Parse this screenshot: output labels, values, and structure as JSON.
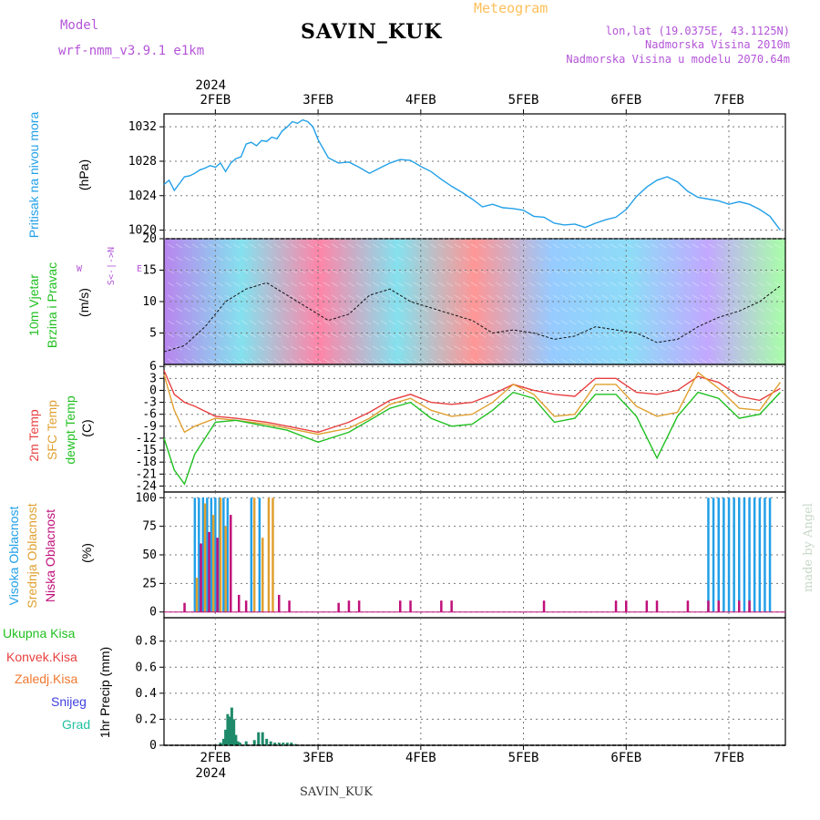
{
  "header": {
    "meteogram": "Meteogram",
    "model_label": "Model",
    "model_name": "wrf-nmm_v3.9.1 e1km",
    "station": "SAVIN_KUK",
    "lonlat": "lon,lat (19.0375E, 43.1125N)",
    "elevation": "Nadmorska Visina 2010m",
    "model_elevation": "Nadmorska Visina u modelu 2070.64m"
  },
  "footer": {
    "station": "SAVIN_KUK",
    "made_by": "made by Angel"
  },
  "colors": {
    "pressure": "#22a0e8",
    "temp2m": "#e84040",
    "sfc": "#e0a030",
    "dew": "#20c020",
    "high_cloud": "#22a0e8",
    "mid_cloud": "#e0a030",
    "low_cloud": "#c0107a",
    "precip": "#1f8a6a"
  },
  "chart_data": [
    {
      "type": "line",
      "panel": "pressure",
      "title": "",
      "ylabel_lines": [
        "Pritisak na nivou mora",
        "(hPa)"
      ],
      "ylim": [
        1019,
        1033.5
      ],
      "yticks": [
        1020,
        1024,
        1028,
        1032
      ],
      "x_unit": "days since start (0 = 1FEB 12:00)",
      "top_axis": {
        "year": "2024",
        "ticks": [
          "2FEB",
          "3FEB",
          "4FEB",
          "5FEB",
          "6FEB",
          "7FEB"
        ]
      },
      "series": [
        {
          "name": "Pritisak na nivou mora",
          "x": [
            0,
            0.05,
            0.1,
            0.15,
            0.2,
            0.25,
            0.3,
            0.35,
            0.4,
            0.45,
            0.5,
            0.55,
            0.6,
            0.65,
            0.7,
            0.75,
            0.8,
            0.85,
            0.9,
            0.95,
            1.0,
            1.05,
            1.1,
            1.15,
            1.2,
            1.25,
            1.3,
            1.35,
            1.4,
            1.45,
            1.5,
            1.6,
            1.7,
            1.8,
            1.9,
            2.0,
            2.1,
            2.2,
            2.3,
            2.4,
            2.5,
            2.6,
            2.7,
            2.8,
            2.9,
            3.0,
            3.1,
            3.2,
            3.3,
            3.4,
            3.5,
            3.6,
            3.7,
            3.8,
            3.9,
            4.0,
            4.1,
            4.2,
            4.3,
            4.4,
            4.5,
            4.6,
            4.7,
            4.8,
            4.9,
            5.0,
            5.1,
            5.2,
            5.3,
            5.4,
            5.5,
            5.6,
            5.7,
            5.8,
            5.9,
            6.0
          ],
          "values": [
            1025.3,
            1025.8,
            1024.6,
            1025.4,
            1026.2,
            1026.3,
            1026.6,
            1027.0,
            1027.2,
            1027.5,
            1027.3,
            1027.8,
            1026.8,
            1027.8,
            1028.3,
            1028.5,
            1030.0,
            1030.2,
            1029.8,
            1030.4,
            1030.3,
            1030.8,
            1030.6,
            1031.5,
            1032.0,
            1032.6,
            1032.4,
            1032.8,
            1032.6,
            1032.0,
            1030.5,
            1028.4,
            1027.8,
            1027.9,
            1027.3,
            1026.6,
            1027.2,
            1027.8,
            1028.2,
            1028.1,
            1027.4,
            1026.8,
            1025.9,
            1025.1,
            1024.4,
            1023.6,
            1022.7,
            1023.0,
            1022.6,
            1022.5,
            1022.3,
            1021.6,
            1021.5,
            1020.8,
            1020.6,
            1020.7,
            1020.3,
            1020.8,
            1021.2,
            1021.5,
            1022.4,
            1023.9,
            1025.0,
            1025.8,
            1026.2,
            1025.6,
            1024.5,
            1023.8,
            1023.6,
            1023.4,
            1023.0,
            1023.3,
            1023.0,
            1022.4,
            1021.6,
            1020.0
          ]
        }
      ]
    },
    {
      "type": "line",
      "panel": "wind",
      "ylabel_lines": [
        "10m Vjetar",
        "Brzina i Pravac",
        "(m/s)"
      ],
      "direction_key": [
        "W",
        "E",
        "N",
        "S"
      ],
      "ylim": [
        0,
        20
      ],
      "yticks": [
        5,
        10,
        15,
        20
      ],
      "series": [
        {
          "name": "Brzina",
          "x": [
            0,
            0.2,
            0.4,
            0.6,
            0.8,
            1.0,
            1.2,
            1.4,
            1.6,
            1.8,
            2.0,
            2.2,
            2.4,
            2.6,
            2.8,
            3.0,
            3.2,
            3.4,
            3.6,
            3.8,
            4.0,
            4.2,
            4.4,
            4.6,
            4.8,
            5.0,
            5.2,
            5.4,
            5.6,
            5.8,
            6.0
          ],
          "values": [
            2.0,
            3.0,
            6.0,
            10.0,
            12.0,
            13.0,
            11.0,
            9.0,
            7.0,
            8.0,
            11.0,
            12.0,
            10.0,
            9.0,
            8.0,
            7.0,
            5.0,
            5.5,
            5.0,
            4.0,
            4.5,
            6.0,
            5.5,
            5.0,
            3.5,
            4.0,
            6.0,
            7.5,
            8.5,
            10.0,
            12.5
          ]
        }
      ],
      "arrow_colors_by_day": [
        "#8020e0",
        "#20c8e0",
        "#ff2060",
        "#20c8e0",
        "#ff4040",
        "#40a0ff",
        "#30c0f0",
        "#9060ff",
        "#60ff60"
      ]
    },
    {
      "type": "line",
      "panel": "temperature",
      "ylabel_lines": [
        "2m Temp",
        "SFC Temp",
        "dewpt Temp",
        "(C)"
      ],
      "ylim": [
        -25.5,
        6.5
      ],
      "yticks": [
        6,
        3,
        0,
        -3,
        -6,
        -9,
        -12,
        -15,
        -18,
        -21,
        -24
      ],
      "series": [
        {
          "name": "2m Temp",
          "x": [
            0,
            0.1,
            0.2,
            0.3,
            0.5,
            0.7,
            1.0,
            1.2,
            1.5,
            1.8,
            2.0,
            2.2,
            2.4,
            2.6,
            2.8,
            3.0,
            3.2,
            3.4,
            3.6,
            3.8,
            4.0,
            4.2,
            4.4,
            4.6,
            4.8,
            5.0,
            5.2,
            5.4,
            5.6,
            5.8,
            6.0
          ],
          "values": [
            5.0,
            -1.0,
            -3.0,
            -4.0,
            -6.5,
            -7.0,
            -8.0,
            -9.0,
            -10.5,
            -8.0,
            -5.5,
            -2.5,
            -1.0,
            -3.0,
            -3.5,
            -3.0,
            -1.0,
            1.5,
            0.0,
            -1.0,
            -1.5,
            3.0,
            3.0,
            -0.5,
            -1.0,
            0.0,
            3.5,
            2.0,
            -1.5,
            -2.5,
            0.5
          ]
        },
        {
          "name": "SFC Temp",
          "x": [
            0,
            0.1,
            0.2,
            0.3,
            0.5,
            0.7,
            1.0,
            1.2,
            1.5,
            1.8,
            2.0,
            2.2,
            2.4,
            2.6,
            2.8,
            3.0,
            3.2,
            3.4,
            3.6,
            3.8,
            4.0,
            4.2,
            4.4,
            4.6,
            4.8,
            5.0,
            5.2,
            5.4,
            5.6,
            5.8,
            6.0
          ],
          "values": [
            4.0,
            -5.0,
            -10.5,
            -9.0,
            -7.0,
            -7.5,
            -8.5,
            -9.5,
            -11.0,
            -9.5,
            -7.0,
            -3.5,
            -2.0,
            -5.0,
            -6.5,
            -6.0,
            -3.0,
            1.5,
            -1.0,
            -6.5,
            -6.0,
            1.5,
            1.5,
            -4.0,
            -6.5,
            -5.5,
            4.5,
            0.5,
            -4.5,
            -5.0,
            2.0
          ]
        },
        {
          "name": "dewpt Temp",
          "x": [
            0,
            0.1,
            0.2,
            0.3,
            0.5,
            0.7,
            1.0,
            1.2,
            1.5,
            1.8,
            2.0,
            2.2,
            2.4,
            2.6,
            2.8,
            3.0,
            3.2,
            3.4,
            3.6,
            3.8,
            4.0,
            4.2,
            4.4,
            4.6,
            4.8,
            5.0,
            5.2,
            5.4,
            5.6,
            5.8,
            6.0
          ],
          "values": [
            -12.0,
            -20.0,
            -23.5,
            -16.0,
            -8.0,
            -7.5,
            -9.0,
            -10.0,
            -13.0,
            -10.5,
            -7.5,
            -4.5,
            -3.0,
            -7.0,
            -9.0,
            -8.5,
            -5.0,
            -0.5,
            -2.0,
            -8.0,
            -7.0,
            -1.0,
            -1.0,
            -6.5,
            -17.0,
            -6.5,
            -0.5,
            -2.0,
            -7.0,
            -6.0,
            -0.5
          ]
        }
      ]
    },
    {
      "type": "bar",
      "panel": "clouds",
      "ylabel_lines": [
        "Visoka Oblacnost",
        "Srednja Oblacnost",
        "Niska Oblacnost",
        "(%)"
      ],
      "ylim": [
        -5,
        105
      ],
      "yticks": [
        0,
        25,
        50,
        75,
        100
      ],
      "series": [
        {
          "name": "Visoka Oblacnost",
          "x": [
            0.3,
            0.34,
            0.38,
            0.42,
            0.46,
            0.5,
            0.54,
            0.58,
            0.62,
            0.85,
            0.93,
            5.3,
            5.35,
            5.4,
            5.45,
            5.5,
            5.55,
            5.6,
            5.65,
            5.7,
            5.75,
            5.8,
            5.85,
            5.9
          ],
          "values": [
            100,
            100,
            100,
            100,
            100,
            100,
            100,
            100,
            100,
            100,
            100,
            100,
            100,
            100,
            100,
            100,
            100,
            100,
            100,
            100,
            100,
            100,
            100,
            100
          ]
        },
        {
          "name": "Srednja Oblacnost",
          "x": [
            0.32,
            0.4,
            0.48,
            0.55,
            0.6,
            0.88,
            0.96,
            1.02,
            1.06
          ],
          "values": [
            30,
            95,
            85,
            100,
            75,
            100,
            65,
            100,
            100
          ]
        },
        {
          "name": "Niska Oblacnost",
          "x": [
            0.2,
            0.36,
            0.44,
            0.52,
            0.65,
            0.73,
            0.8,
            1.12,
            1.22,
            1.7,
            1.8,
            1.9,
            2.3,
            2.4,
            2.7,
            2.8,
            3.7,
            4.4,
            4.5,
            4.7,
            4.8,
            5.1,
            5.3,
            5.4,
            5.6,
            5.7
          ],
          "values": [
            8,
            60,
            70,
            65,
            85,
            15,
            10,
            15,
            10,
            8,
            10,
            10,
            10,
            10,
            10,
            10,
            10,
            10,
            10,
            10,
            10,
            10,
            10,
            10,
            10,
            10
          ]
        }
      ]
    },
    {
      "type": "bar",
      "panel": "precipitation",
      "ylabel_lines": [
        "Ukupna Kisa",
        "Konvek.Kisa",
        "Zaledj.Kisa",
        "Snijeg",
        "Grad",
        "1hr Precip (mm)"
      ],
      "ylim": [
        0,
        0.98
      ],
      "yticks": [
        0,
        0.2,
        0.4,
        0.6,
        0.8
      ],
      "bottom_axis": {
        "year": "2024",
        "ticks": [
          "2FEB",
          "3FEB",
          "4FEB",
          "5FEB",
          "6FEB",
          "7FEB"
        ]
      },
      "series": [
        {
          "name": "Ukupna Kisa",
          "x": [
            0.55,
            0.58,
            0.6,
            0.62,
            0.64,
            0.66,
            0.68,
            0.7,
            0.72,
            0.74,
            0.8,
            0.88,
            0.92,
            0.96,
            1.0,
            1.04,
            1.08,
            1.12,
            1.16,
            1.2,
            1.24,
            1.28
          ],
          "values": [
            0.02,
            0.05,
            0.12,
            0.24,
            0.22,
            0.29,
            0.2,
            0.08,
            0.03,
            0.02,
            0.03,
            0.04,
            0.1,
            0.1,
            0.05,
            0.03,
            0.02,
            0.02,
            0.02,
            0.02,
            0.02,
            0.01
          ]
        }
      ]
    }
  ]
}
